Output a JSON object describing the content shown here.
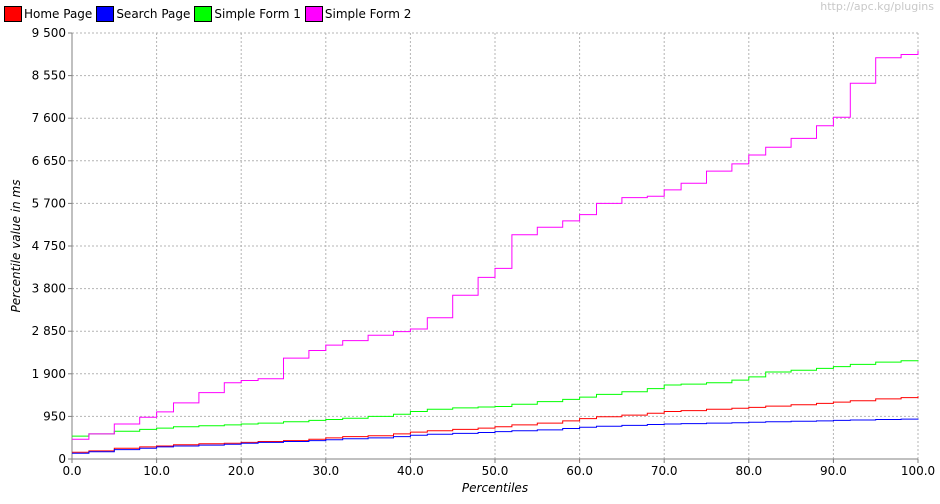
{
  "watermark": "http://apc.kg/plugins",
  "chart_data": {
    "type": "line",
    "title": "",
    "xlabel": "Percentiles",
    "ylabel": "Percentile value in ms",
    "xlim": [
      0,
      100
    ],
    "ylim": [
      0,
      9500
    ],
    "xticks": [
      "0.0",
      "10.0",
      "20.0",
      "30.0",
      "40.0",
      "50.0",
      "60.0",
      "70.0",
      "80.0",
      "90.0",
      "100.0"
    ],
    "yticks": [
      "0",
      "950",
      "1 900",
      "2 850",
      "3 800",
      "4 750",
      "5 700",
      "6 650",
      "7 600",
      "8 550",
      "9 500"
    ],
    "grid": true,
    "legend_position": "top-left",
    "x": [
      0,
      2,
      5,
      8,
      10,
      12,
      15,
      18,
      20,
      22,
      25,
      28,
      30,
      32,
      35,
      38,
      40,
      42,
      45,
      48,
      50,
      52,
      55,
      58,
      60,
      62,
      65,
      68,
      70,
      72,
      75,
      78,
      80,
      82,
      85,
      88,
      90,
      92,
      95,
      98,
      100
    ],
    "series": [
      {
        "name": "Home Page",
        "color": "#ff0000",
        "values": [
          150,
          180,
          240,
          270,
          290,
          320,
          340,
          350,
          370,
          390,
          410,
          440,
          470,
          500,
          520,
          560,
          600,
          630,
          660,
          690,
          720,
          760,
          800,
          850,
          900,
          940,
          980,
          1020,
          1060,
          1080,
          1110,
          1130,
          1150,
          1180,
          1210,
          1240,
          1270,
          1300,
          1340,
          1370,
          1400
        ]
      },
      {
        "name": "Search Page",
        "color": "#0000ff",
        "values": [
          130,
          160,
          210,
          240,
          270,
          290,
          310,
          330,
          350,
          370,
          390,
          410,
          430,
          450,
          470,
          500,
          530,
          550,
          570,
          590,
          610,
          630,
          650,
          680,
          710,
          730,
          750,
          770,
          780,
          790,
          800,
          810,
          820,
          830,
          840,
          850,
          860,
          870,
          880,
          890,
          900
        ]
      },
      {
        "name": "Simple Form 1",
        "color": "#00ff00",
        "values": [
          510,
          560,
          620,
          660,
          690,
          720,
          740,
          760,
          780,
          800,
          830,
          860,
          880,
          910,
          950,
          1000,
          1060,
          1110,
          1140,
          1160,
          1170,
          1220,
          1280,
          1330,
          1380,
          1440,
          1500,
          1570,
          1650,
          1670,
          1700,
          1760,
          1830,
          1940,
          1980,
          2020,
          2060,
          2110,
          2160,
          2190,
          2200
        ]
      },
      {
        "name": "Simple Form 2",
        "color": "#ff00ff",
        "values": [
          440,
          560,
          780,
          930,
          1050,
          1250,
          1480,
          1700,
          1750,
          1790,
          2250,
          2420,
          2540,
          2640,
          2760,
          2840,
          2900,
          3150,
          3650,
          4050,
          4250,
          5000,
          5170,
          5310,
          5450,
          5700,
          5830,
          5860,
          6000,
          6150,
          6420,
          6580,
          6780,
          6950,
          7150,
          7430,
          7620,
          8380,
          8950,
          9020,
          9100
        ]
      }
    ]
  }
}
